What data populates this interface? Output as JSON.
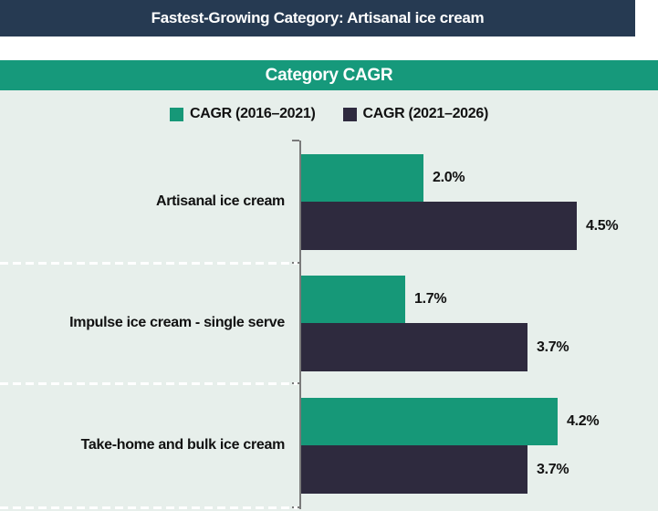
{
  "banner": {
    "title": "Fastest-Growing Category: Artisanal ice cream"
  },
  "colors": {
    "banner_bg": "#263A52",
    "title_bar_bg": "#16997B",
    "chart_bg": "#E7EFEB",
    "series_teal": "#169878",
    "series_dark": "#2E2A3E",
    "axis": "#7A7A7A",
    "separator": "#FFFFFF"
  },
  "chart_data": {
    "type": "bar",
    "orientation": "horizontal",
    "title": "Category CAGR",
    "categories": [
      "Artisanal ice cream",
      "Impulse ice cream - single serve",
      "Take-home and bulk ice cream"
    ],
    "series": [
      {
        "name": "CAGR (2016–2021)",
        "color": "#169878",
        "values": [
          2.0,
          1.7,
          4.2
        ],
        "labels": [
          "2.0%",
          "1.7%",
          "4.2%"
        ]
      },
      {
        "name": "CAGR (2021–2026)",
        "color": "#2E2A3E",
        "values": [
          4.5,
          3.7,
          3.7
        ],
        "labels": [
          "4.5%",
          "3.7%",
          "3.7%"
        ]
      }
    ],
    "xlim": [
      0,
      5
    ],
    "legend_position": "top",
    "grid": false,
    "value_label_format": "0.0%"
  }
}
